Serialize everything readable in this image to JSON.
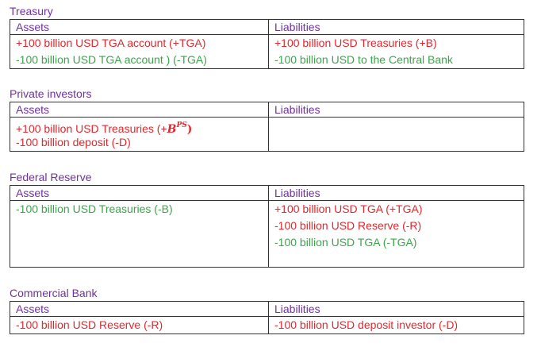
{
  "treasury": {
    "title": "Treasury",
    "assets_header": "Assets",
    "liabilities_header": "Liabilities",
    "assets": [
      {
        "text": "+100 billion USD TGA account (+TGA)",
        "color": "#e0282e"
      },
      {
        "text": "-100 billion USD TGA account ) (-TGA)",
        "color": "#3aa64a"
      }
    ],
    "liabilities": [
      {
        "text": "+100 billion USD Treasuries (+B)",
        "color": "#e0282e"
      },
      {
        "text": "-100 billion USD to the Central Bank",
        "color": "#3aa64a"
      }
    ]
  },
  "private_investors": {
    "title": "Private investors",
    "assets_header": "Assets",
    "liabilities_header": "Liabilities",
    "assets": [
      {
        "text_prefix": "+100 billion USD Treasuries (+",
        "math_base": "B",
        "math_sup": "PS",
        "text_suffix": ")",
        "color": "#e0282e"
      },
      {
        "text": "-100 billion deposit (-D)",
        "color": "#e0282e"
      }
    ],
    "liabilities": []
  },
  "federal_reserve": {
    "title": "Federal Reserve",
    "assets_header": "Assets",
    "liabilities_header": "Liabilities",
    "assets": [
      {
        "text": "-100 billion USD Treasuries (-B)",
        "color": "#3aa64a"
      }
    ],
    "liabilities": [
      {
        "text": "+100 billion USD TGA (+TGA)",
        "color": "#e0282e"
      },
      {
        "text": "-100 billion USD Reserve (-R)",
        "color": "#e0282e"
      },
      {
        "text": "-100 billion USD TGA (-TGA)",
        "color": "#3aa64a"
      }
    ]
  },
  "commercial_bank": {
    "title": "Commercial Bank",
    "assets_header": "Assets",
    "liabilities_header": "Liabilities",
    "assets": [
      {
        "text": "-100 billion USD Reserve (-R)",
        "color": "#e0282e"
      }
    ],
    "liabilities": [
      {
        "text": "-100  billion USD deposit investor (-D)",
        "color": "#e0282e"
      }
    ]
  }
}
